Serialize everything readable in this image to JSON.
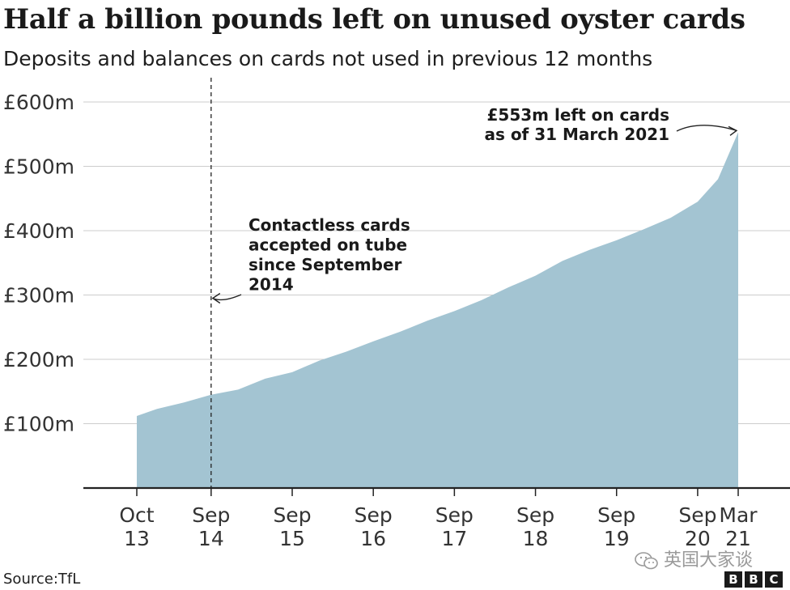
{
  "title": "Half a billion pounds left on unused oyster cards",
  "subtitle": "Deposits and balances on cards not used in previous 12 months",
  "source": "Source:TfL",
  "watermark": "英国大家谈",
  "logo": [
    "B",
    "B",
    "C"
  ],
  "colors": {
    "area": "#a3c4d2",
    "grid": "#cccccc",
    "axis": "#222222",
    "text": "#222222"
  },
  "chart_data": {
    "type": "area",
    "title": "Half a billion pounds left on unused oyster cards",
    "subtitle": "Deposits and balances on cards not used in previous 12 months",
    "xlabel": "",
    "ylabel": "",
    "ylim": [
      0,
      600
    ],
    "yticks": [
      100,
      200,
      300,
      400,
      500,
      600
    ],
    "ytick_labels": [
      "£100m",
      "£200m",
      "£300m",
      "£400m",
      "£500m",
      "£600m"
    ],
    "xticks": [
      {
        "date": "2013-10",
        "label": [
          "Oct",
          "13"
        ]
      },
      {
        "date": "2014-09",
        "label": [
          "Sep",
          "14"
        ]
      },
      {
        "date": "2015-09",
        "label": [
          "Sep",
          "15"
        ]
      },
      {
        "date": "2016-09",
        "label": [
          "Sep",
          "16"
        ]
      },
      {
        "date": "2017-09",
        "label": [
          "Sep",
          "17"
        ]
      },
      {
        "date": "2018-09",
        "label": [
          "Sep",
          "18"
        ]
      },
      {
        "date": "2019-09",
        "label": [
          "Sep",
          "19"
        ]
      },
      {
        "date": "2020-09",
        "label": [
          "Sep",
          "20"
        ]
      },
      {
        "date": "2021-03",
        "label": [
          "Mar",
          "21"
        ]
      }
    ],
    "grid": true,
    "series": [
      {
        "points": [
          {
            "x": "2013-10",
            "y": 112
          },
          {
            "x": "2014-01",
            "y": 123
          },
          {
            "x": "2014-05",
            "y": 133
          },
          {
            "x": "2014-09",
            "y": 145
          },
          {
            "x": "2015-01",
            "y": 153
          },
          {
            "x": "2015-05",
            "y": 170
          },
          {
            "x": "2015-09",
            "y": 180
          },
          {
            "x": "2016-01",
            "y": 198
          },
          {
            "x": "2016-05",
            "y": 212
          },
          {
            "x": "2016-09",
            "y": 228
          },
          {
            "x": "2017-01",
            "y": 243
          },
          {
            "x": "2017-05",
            "y": 260
          },
          {
            "x": "2017-09",
            "y": 275
          },
          {
            "x": "2018-01",
            "y": 292
          },
          {
            "x": "2018-05",
            "y": 312
          },
          {
            "x": "2018-09",
            "y": 330
          },
          {
            "x": "2019-01",
            "y": 353
          },
          {
            "x": "2019-05",
            "y": 370
          },
          {
            "x": "2019-09",
            "y": 385
          },
          {
            "x": "2020-01",
            "y": 402
          },
          {
            "x": "2020-05",
            "y": 420
          },
          {
            "x": "2020-09",
            "y": 445
          },
          {
            "x": "2020-12",
            "y": 480
          },
          {
            "x": "2021-03",
            "y": 553
          }
        ]
      }
    ],
    "reference_line": {
      "x": "2014-09"
    },
    "annotations": [
      {
        "text": [
          "Contactless cards",
          "accepted on tube",
          "since September",
          "2014"
        ],
        "target": {
          "x": "2014-09",
          "y": 300
        }
      },
      {
        "text": [
          "£553m left on cards",
          "as of 31 March 2021"
        ],
        "target": {
          "x": "2021-03",
          "y": 553
        }
      }
    ]
  }
}
